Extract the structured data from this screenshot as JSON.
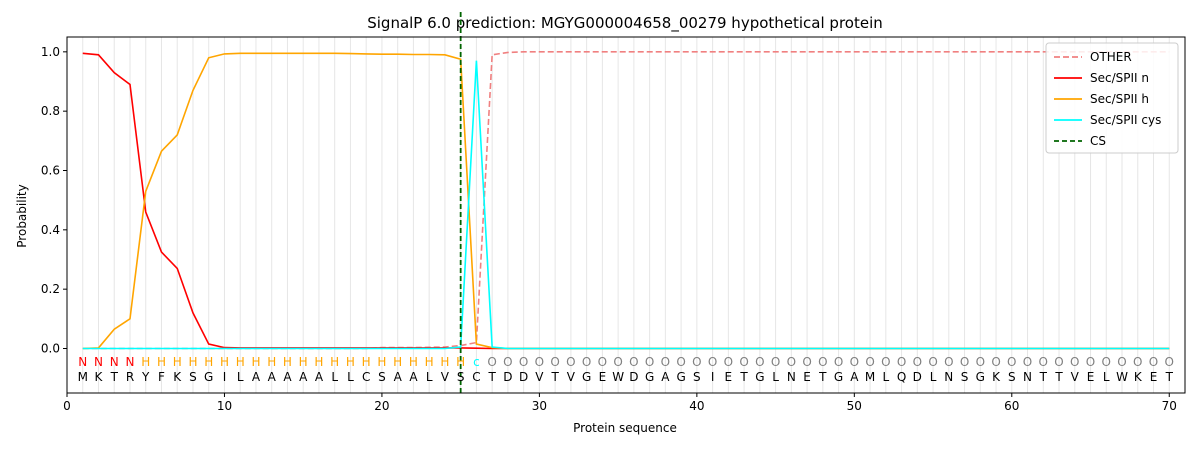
{
  "chart_data": {
    "type": "line",
    "title": "SignalP 6.0 prediction: MGYG000004658_00279 hypothetical protein",
    "xlabel": "Protein sequence",
    "ylabel": "Probability",
    "xlim": [
      0,
      71
    ],
    "ylim": [
      -0.15,
      1.05
    ],
    "xticks": [
      0,
      10,
      20,
      30,
      40,
      50,
      60,
      70
    ],
    "yticks": [
      0.0,
      0.2,
      0.4,
      0.6,
      0.8,
      1.0
    ],
    "ytick_labels": [
      "0.0",
      "0.2",
      "0.4",
      "0.6",
      "0.8",
      "1.0"
    ],
    "legend_position": "top-right",
    "sequence": [
      "M",
      "K",
      "T",
      "R",
      "Y",
      "F",
      "K",
      "S",
      "G",
      "I",
      "L",
      "A",
      "A",
      "A",
      "A",
      "A",
      "L",
      "L",
      "C",
      "S",
      "A",
      "A",
      "L",
      "V",
      "S",
      "C",
      "T",
      "D",
      "D",
      "V",
      "T",
      "V",
      "G",
      "E",
      "W",
      "D",
      "G",
      "A",
      "G",
      "S",
      "I",
      "E",
      "T",
      "G",
      "L",
      "N",
      "E",
      "T",
      "G",
      "A",
      "M",
      "L",
      "Q",
      "D",
      "L",
      "N",
      "S",
      "G",
      "K",
      "S",
      "N",
      "T",
      "T",
      "V",
      "E",
      "L",
      "W",
      "K",
      "E",
      "T"
    ],
    "region_labels": [
      "N",
      "N",
      "N",
      "N",
      "H",
      "H",
      "H",
      "H",
      "H",
      "H",
      "H",
      "H",
      "H",
      "H",
      "H",
      "H",
      "H",
      "H",
      "H",
      "H",
      "H",
      "H",
      "H",
      "H",
      "H",
      "c",
      "O",
      "O",
      "O",
      "O",
      "O",
      "O",
      "O",
      "O",
      "O",
      "O",
      "O",
      "O",
      "O",
      "O",
      "O",
      "O",
      "O",
      "O",
      "O",
      "O",
      "O",
      "O",
      "O",
      "O",
      "O",
      "O",
      "O",
      "O",
      "O",
      "O",
      "O",
      "O",
      "O",
      "O",
      "O",
      "O",
      "O",
      "O",
      "O",
      "O",
      "O",
      "O",
      "O",
      "O"
    ],
    "region_colors": {
      "N": "#ff0000",
      "H": "#ffa500",
      "c": "#00ffff",
      "O": "#808080"
    },
    "cleavage_site": 25,
    "series": [
      {
        "name": "OTHER",
        "color": "#f08080",
        "dash": true,
        "values": [
          0,
          0,
          0,
          0,
          0,
          0,
          0,
          0,
          0,
          0,
          0,
          0,
          0,
          0,
          0,
          0,
          0,
          0,
          0,
          0.003,
          0.003,
          0.003,
          0.004,
          0.005,
          0.01,
          0.02,
          0.99,
          0.998,
          1,
          1,
          1,
          1,
          1,
          1,
          1,
          1,
          1,
          1,
          1,
          1,
          1,
          1,
          1,
          1,
          1,
          1,
          1,
          1,
          1,
          1,
          1,
          1,
          1,
          1,
          1,
          1,
          1,
          1,
          1,
          1,
          1,
          1,
          1,
          1,
          1,
          1,
          1,
          1,
          1,
          1
        ]
      },
      {
        "name": "Sec/SPII n",
        "color": "#ff0000",
        "dash": false,
        "values": [
          0.995,
          0.99,
          0.93,
          0.89,
          0.46,
          0.325,
          0.27,
          0.12,
          0.015,
          0.003,
          0.002,
          0.002,
          0.002,
          0.002,
          0.002,
          0.002,
          0.002,
          0.002,
          0.002,
          0.002,
          0.002,
          0.002,
          0.002,
          0.002,
          0.002,
          0.001,
          0,
          0,
          0,
          0,
          0,
          0,
          0,
          0,
          0,
          0,
          0,
          0,
          0,
          0,
          0,
          0,
          0,
          0,
          0,
          0,
          0,
          0,
          0,
          0,
          0,
          0,
          0,
          0,
          0,
          0,
          0,
          0,
          0,
          0,
          0,
          0,
          0,
          0,
          0,
          0,
          0,
          0,
          0,
          0
        ]
      },
      {
        "name": "Sec/SPII h",
        "color": "#ffa500",
        "dash": false,
        "values": [
          0,
          0.002,
          0.065,
          0.1,
          0.53,
          0.665,
          0.72,
          0.87,
          0.98,
          0.993,
          0.995,
          0.995,
          0.995,
          0.995,
          0.995,
          0.995,
          0.995,
          0.994,
          0.993,
          0.992,
          0.992,
          0.991,
          0.991,
          0.99,
          0.975,
          0.015,
          0.003,
          0,
          0,
          0,
          0,
          0,
          0,
          0,
          0,
          0,
          0,
          0,
          0,
          0,
          0,
          0,
          0,
          0,
          0,
          0,
          0,
          0,
          0,
          0,
          0,
          0,
          0,
          0,
          0,
          0,
          0,
          0,
          0,
          0,
          0,
          0,
          0,
          0,
          0,
          0,
          0,
          0,
          0,
          0
        ]
      },
      {
        "name": "Sec/SPII cys",
        "color": "#00ffff",
        "dash": false,
        "values": [
          0,
          0,
          0,
          0,
          0,
          0,
          0,
          0,
          0,
          0,
          0,
          0,
          0,
          0,
          0,
          0,
          0,
          0,
          0,
          0,
          0,
          0,
          0,
          0,
          0.005,
          0.97,
          0.005,
          0,
          0,
          0,
          0,
          0,
          0,
          0,
          0,
          0,
          0,
          0,
          0,
          0,
          0,
          0,
          0,
          0,
          0,
          0,
          0,
          0,
          0,
          0,
          0,
          0,
          0,
          0,
          0,
          0,
          0,
          0,
          0,
          0,
          0,
          0,
          0,
          0,
          0,
          0,
          0,
          0,
          0,
          0
        ]
      }
    ],
    "cs_legend": {
      "name": "CS",
      "color": "#006400"
    }
  }
}
